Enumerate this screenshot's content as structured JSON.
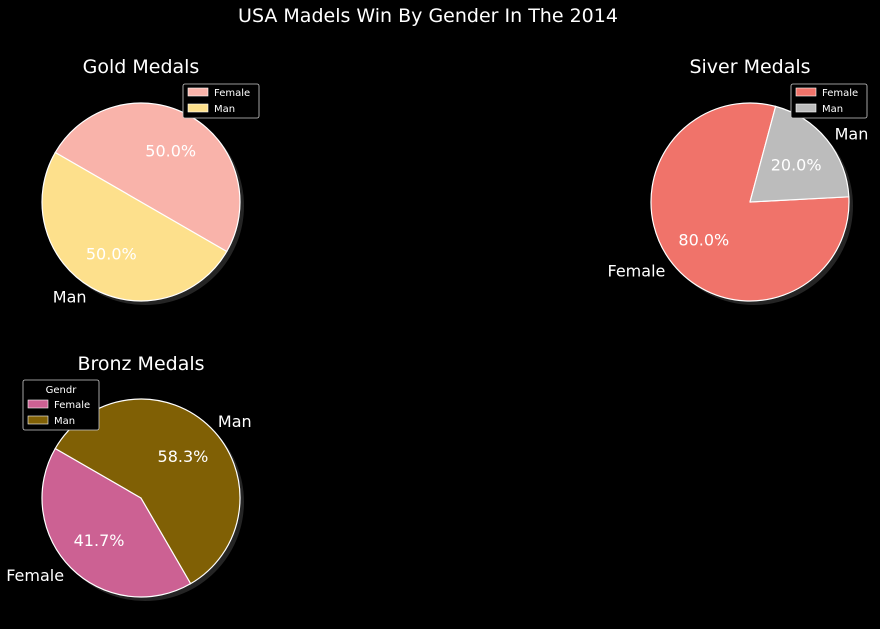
{
  "figure_title": "USA Madels Win By Gender In The 2014",
  "chart_data": [
    {
      "type": "pie",
      "title": "Gold Medals",
      "slices": [
        {
          "label": "Female",
          "value": 50.0,
          "pct_label": "50.0%",
          "color": "#f9b3aa",
          "show_label": true
        },
        {
          "label": "Man",
          "value": 50.0,
          "pct_label": "50.0%",
          "color": "#fde08c",
          "show_label": true
        }
      ],
      "legend": {
        "title": "",
        "entries": [
          "Female",
          "Man"
        ],
        "placement": "top-right"
      }
    },
    {
      "type": "pie",
      "title": "Siver Medals",
      "slices": [
        {
          "label": "Female",
          "value": 80.0,
          "pct_label": "80.0%",
          "color": "#f0736a",
          "show_label": true
        },
        {
          "label": "Man",
          "value": 20.0,
          "pct_label": "20.0%",
          "color": "#bcbcbc",
          "show_label": true
        }
      ],
      "legend": {
        "title": "",
        "entries": [
          "Female",
          "Man"
        ],
        "placement": "top-right"
      }
    },
    {
      "type": "pie",
      "title": "Bronz Medals",
      "slices": [
        {
          "label": "Female",
          "value": 41.7,
          "pct_label": "41.7%",
          "color": "#cc6193",
          "show_label": true
        },
        {
          "label": "Man",
          "value": 58.3,
          "pct_label": "58.3%",
          "color": "#806005",
          "show_label": true
        }
      ],
      "legend": {
        "title": "Gendr",
        "entries": [
          "Female",
          "Man"
        ],
        "placement": "top-left"
      }
    }
  ]
}
